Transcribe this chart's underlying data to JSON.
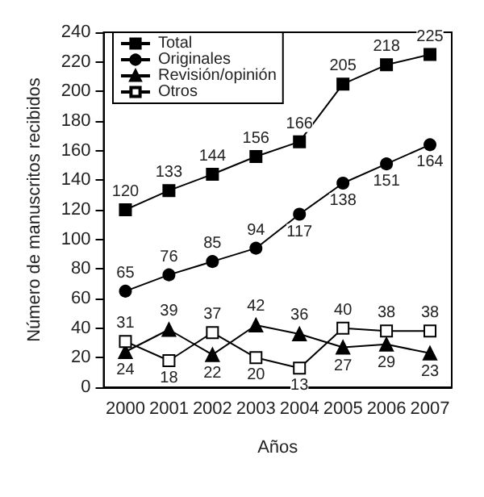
{
  "chart_data": {
    "type": "line",
    "xlabel": "Años",
    "ylabel": "Número de manuscritos recibidos",
    "categories": [
      "2000",
      "2001",
      "2002",
      "2003",
      "2004",
      "2005",
      "2006",
      "2007"
    ],
    "series": [
      {
        "name": "Total",
        "color": "#000000",
        "marker": "square",
        "values": [
          120,
          133,
          144,
          156,
          166,
          205,
          218,
          225
        ]
      },
      {
        "name": "Originales",
        "color": "#000000",
        "marker": "circle",
        "values": [
          65,
          76,
          85,
          94,
          117,
          138,
          151,
          164
        ]
      },
      {
        "name": "Revisión/opinión",
        "color": "#000000",
        "marker": "triangle",
        "values": [
          24,
          39,
          22,
          42,
          36,
          27,
          29,
          23
        ]
      },
      {
        "name": "Otros",
        "color": "#ffffff",
        "marker": "square",
        "values": [
          31,
          18,
          37,
          20,
          13,
          40,
          38,
          38
        ]
      }
    ],
    "ylim": [
      0,
      240
    ],
    "yticks": [
      0,
      20,
      40,
      60,
      80,
      100,
      120,
      140,
      160,
      180,
      200,
      220,
      240
    ],
    "data_labels": true,
    "legend": "top left",
    "grid": false,
    "line_style": "solid"
  }
}
